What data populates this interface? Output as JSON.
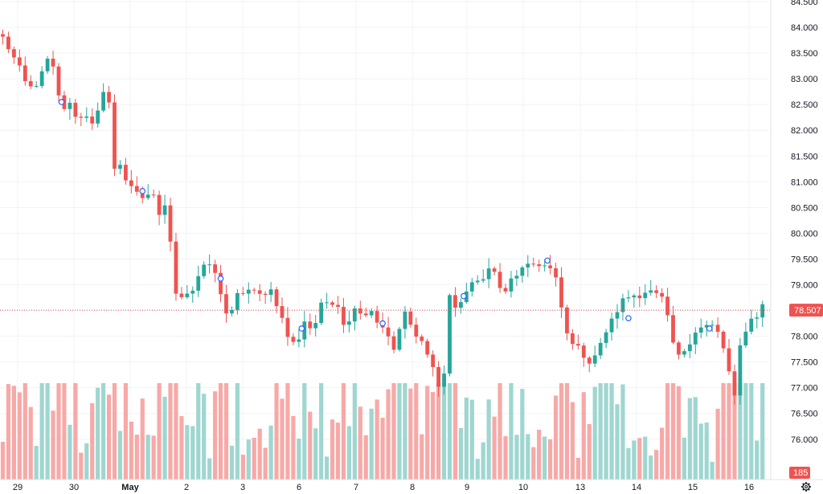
{
  "chart_data": {
    "type": "candlestick",
    "y_axis": {
      "ylim": [
        75.7,
        84.5
      ],
      "ticks": [
        "76.000",
        "76.500",
        "77.000",
        "77.500",
        "78.000",
        "78.500",
        "79.000",
        "79.500",
        "80.000",
        "80.500",
        "81.000",
        "81.500",
        "82.000",
        "82.500",
        "83.000",
        "83.500",
        "84.000",
        "84.500"
      ]
    },
    "x_axis": {
      "labels": [
        {
          "text": "29",
          "bold": false
        },
        {
          "text": "30",
          "bold": false
        },
        {
          "text": "May",
          "bold": true
        },
        {
          "text": "2",
          "bold": false
        },
        {
          "text": "3",
          "bold": false
        },
        {
          "text": "6",
          "bold": false
        },
        {
          "text": "7",
          "bold": false
        },
        {
          "text": "8",
          "bold": false
        },
        {
          "text": "9",
          "bold": false
        },
        {
          "text": "10",
          "bold": false
        },
        {
          "text": "13",
          "bold": false
        },
        {
          "text": "14",
          "bold": false
        },
        {
          "text": "15",
          "bold": false
        },
        {
          "text": "16",
          "bold": false
        }
      ]
    },
    "anchors": [
      {
        "x": 0,
        "price": 83.8
      },
      {
        "x": 1,
        "price": 83.6
      },
      {
        "x": 3,
        "price": 83.2
      },
      {
        "x": 4.5,
        "price": 82.8
      },
      {
        "x": 6,
        "price": 82.9
      },
      {
        "x": 7,
        "price": 83.1
      },
      {
        "x": 8.5,
        "price": 83.5
      },
      {
        "x": 9.5,
        "price": 82.9
      },
      {
        "x": 10.5,
        "price": 82.4
      },
      {
        "x": 12,
        "price": 82.5
      },
      {
        "x": 13.5,
        "price": 82.2
      },
      {
        "x": 15,
        "price": 82.3
      },
      {
        "x": 16.5,
        "price": 82.1
      },
      {
        "x": 17.5,
        "price": 82.6
      },
      {
        "x": 18.5,
        "price": 82.8
      },
      {
        "x": 19,
        "price": 82.5
      },
      {
        "x": 19.5,
        "price": 81.1
      },
      {
        "x": 20.5,
        "price": 81.5
      },
      {
        "x": 22,
        "price": 81.0
      },
      {
        "x": 23.5,
        "price": 80.9
      },
      {
        "x": 25,
        "price": 80.7
      },
      {
        "x": 27,
        "price": 80.7
      },
      {
        "x": 28.5,
        "price": 80.2
      },
      {
        "x": 29.5,
        "price": 80.9
      },
      {
        "x": 30,
        "price": 79.8
      },
      {
        "x": 30.5,
        "price": 78.9
      },
      {
        "x": 32,
        "price": 78.8
      },
      {
        "x": 34,
        "price": 78.9
      },
      {
        "x": 35.5,
        "price": 79.3
      },
      {
        "x": 37,
        "price": 79.4
      },
      {
        "x": 38.5,
        "price": 79.1
      },
      {
        "x": 39.5,
        "price": 78.6
      },
      {
        "x": 40.5,
        "price": 78.3
      },
      {
        "x": 42,
        "price": 78.8
      },
      {
        "x": 44,
        "price": 78.9
      },
      {
        "x": 46,
        "price": 78.8
      },
      {
        "x": 48,
        "price": 78.9
      },
      {
        "x": 49.5,
        "price": 78.5
      },
      {
        "x": 51,
        "price": 78.0
      },
      {
        "x": 52.5,
        "price": 77.8
      },
      {
        "x": 54,
        "price": 78.3
      },
      {
        "x": 55.5,
        "price": 78.1
      },
      {
        "x": 57,
        "price": 78.6
      },
      {
        "x": 58.5,
        "price": 78.7
      },
      {
        "x": 60,
        "price": 78.6
      },
      {
        "x": 61.5,
        "price": 78.1
      },
      {
        "x": 63,
        "price": 78.6
      },
      {
        "x": 64.5,
        "price": 78.4
      },
      {
        "x": 66,
        "price": 78.5
      },
      {
        "x": 67.5,
        "price": 78.2
      },
      {
        "x": 69,
        "price": 78.0
      },
      {
        "x": 70.5,
        "price": 77.6
      },
      {
        "x": 71.5,
        "price": 78.6
      },
      {
        "x": 73,
        "price": 78.2
      },
      {
        "x": 75,
        "price": 77.9
      },
      {
        "x": 77,
        "price": 77.4
      },
      {
        "x": 78,
        "price": 77.0
      },
      {
        "x": 79,
        "price": 77.3
      },
      {
        "x": 80,
        "price": 78.8
      },
      {
        "x": 81,
        "price": 78.5
      },
      {
        "x": 82.5,
        "price": 78.8
      },
      {
        "x": 84,
        "price": 79.0
      },
      {
        "x": 85.5,
        "price": 79.1
      },
      {
        "x": 87,
        "price": 79.3
      },
      {
        "x": 88.5,
        "price": 79.2
      },
      {
        "x": 89.5,
        "price": 78.7
      },
      {
        "x": 91,
        "price": 79.1
      },
      {
        "x": 93,
        "price": 79.3
      },
      {
        "x": 95,
        "price": 79.4
      },
      {
        "x": 96.5,
        "price": 79.4
      },
      {
        "x": 98,
        "price": 79.3
      },
      {
        "x": 99.5,
        "price": 79.0
      },
      {
        "x": 100.5,
        "price": 78.1
      },
      {
        "x": 102,
        "price": 77.9
      },
      {
        "x": 103.5,
        "price": 77.7
      },
      {
        "x": 105,
        "price": 77.5
      },
      {
        "x": 106.5,
        "price": 77.7
      },
      {
        "x": 108,
        "price": 78.1
      },
      {
        "x": 109.5,
        "price": 78.4
      },
      {
        "x": 111,
        "price": 78.7
      },
      {
        "x": 112.5,
        "price": 78.8
      },
      {
        "x": 114,
        "price": 78.8
      },
      {
        "x": 115.5,
        "price": 78.9
      },
      {
        "x": 117,
        "price": 78.8
      },
      {
        "x": 118.5,
        "price": 78.7
      },
      {
        "x": 119.5,
        "price": 78.0
      },
      {
        "x": 121,
        "price": 77.6
      },
      {
        "x": 122.5,
        "price": 77.8
      },
      {
        "x": 124,
        "price": 78.1
      },
      {
        "x": 125.5,
        "price": 78.2
      },
      {
        "x": 127,
        "price": 78.2
      },
      {
        "x": 128.5,
        "price": 78.0
      },
      {
        "x": 130,
        "price": 77.3
      },
      {
        "x": 131,
        "price": 76.8
      },
      {
        "x": 132,
        "price": 77.8
      },
      {
        "x": 133.5,
        "price": 78.3
      },
      {
        "x": 135,
        "price": 78.4
      },
      {
        "x": 136,
        "price": 78.6
      },
      {
        "x": 137,
        "price": 78.5
      }
    ],
    "events": [
      {
        "x": 10.5,
        "price": 82.55
      },
      {
        "x": 25,
        "price": 80.82
      },
      {
        "x": 39,
        "price": 79.12
      },
      {
        "x": 53.5,
        "price": 78.15
      },
      {
        "x": 68,
        "price": 78.25
      },
      {
        "x": 82.5,
        "price": 78.78
      },
      {
        "x": 97.5,
        "price": 79.47
      },
      {
        "x": 112,
        "price": 78.35
      },
      {
        "x": 126.5,
        "price": 78.15
      }
    ],
    "current_price": {
      "value": 78.507,
      "label": "78.507"
    },
    "volume": {
      "current_label": "185"
    },
    "colors": {
      "up": "#26a69a",
      "down": "#ef5350",
      "volume_up": "#9fd6d0",
      "volume_down": "#f7a9a7",
      "price_line": "#ef5350",
      "event_marker": "#2962ff",
      "badge_volume": "#ef5350",
      "badge_price": "#ef5350"
    }
  },
  "icons": {
    "settings": "gear-icon"
  }
}
